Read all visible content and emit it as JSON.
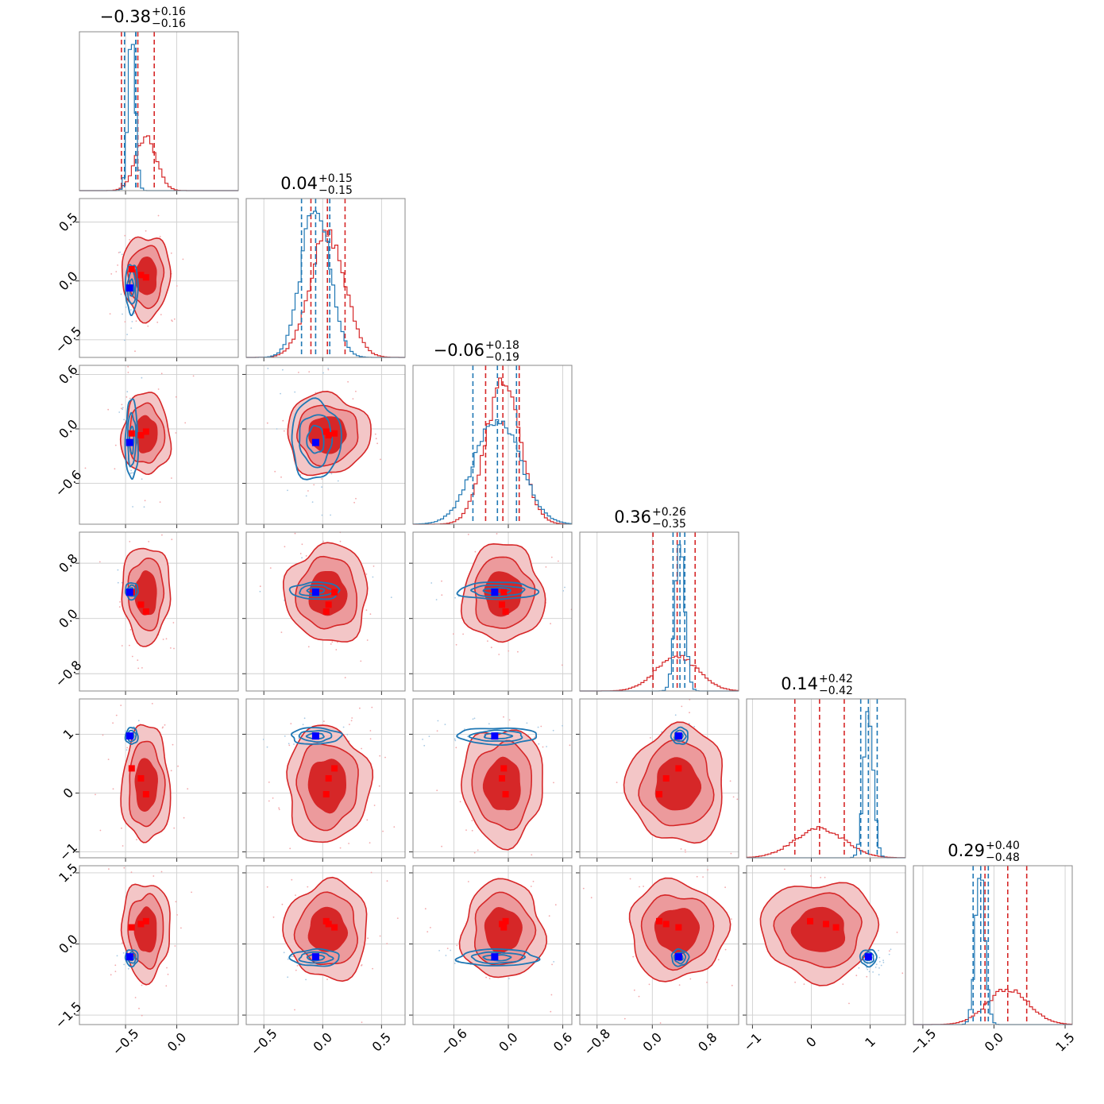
{
  "chart_data": {
    "type": "corner",
    "grid": true,
    "series": [
      {
        "name": "",
        "color": "#d62728"
      },
      {
        "name": "",
        "color": "#1f77b4"
      }
    ],
    "parameters": [
      {
        "range": [
          -0.95,
          0.6
        ],
        "ticks": [
          -0.5,
          0.0
        ],
        "tick_labels": [
          "−0.5",
          "0.0"
        ],
        "title": {
          "value": "−0.38",
          "plus": "+0.16",
          "minus": "−0.16"
        },
        "red": {
          "mean": -0.3,
          "sd": 0.1,
          "quantiles": [
            -0.54,
            -0.38,
            -0.22
          ],
          "truths": [
            -0.44,
            -0.35,
            -0.3
          ]
        },
        "blue": {
          "mean": -0.44,
          "sd": 0.035,
          "quantiles": [
            -0.51,
            -0.4,
            -0.4
          ],
          "truth": -0.46
        }
      },
      {
        "range": [
          -0.65,
          0.7
        ],
        "ticks": [
          -0.5,
          0.0,
          0.5
        ],
        "tick_labels": [
          "−0.5",
          "0.0",
          "0.5"
        ],
        "title": {
          "value": "0.04",
          "plus": "+0.15",
          "minus": "−0.15"
        },
        "red": {
          "mean": 0.04,
          "sd": 0.15,
          "quantiles": [
            -0.1,
            0.04,
            0.19
          ],
          "truths": [
            0.1,
            0.05,
            0.03
          ]
        },
        "blue": {
          "mean": -0.06,
          "sd": 0.12,
          "quantiles": [
            -0.18,
            -0.06,
            0.06
          ],
          "truth": -0.06
        }
      },
      {
        "range": [
          -1.05,
          0.7
        ],
        "ticks": [
          -0.6,
          0.0,
          0.6
        ],
        "tick_labels": [
          "−0.6",
          "0.0",
          "0.6"
        ],
        "title": {
          "value": "−0.06",
          "plus": "+0.18",
          "minus": "−0.19"
        },
        "red": {
          "mean": -0.06,
          "sd": 0.19,
          "quantiles": [
            -0.25,
            -0.06,
            0.12
          ],
          "truths": [
            -0.05,
            -0.07,
            -0.03
          ]
        },
        "blue": {
          "mean": -0.12,
          "sd": 0.25,
          "quantiles": [
            -0.39,
            -0.12,
            0.09
          ],
          "truth": -0.15
        }
      },
      {
        "range": [
          -1.05,
          1.25
        ],
        "ticks": [
          -0.8,
          0.0,
          0.8
        ],
        "tick_labels": [
          "−0.8",
          "0.0",
          "0.8"
        ],
        "title": {
          "value": "0.36",
          "plus": "+0.26",
          "minus": "−0.35"
        },
        "red": {
          "mean": 0.36,
          "sd": 0.3,
          "quantiles": [
            0.01,
            0.36,
            0.62
          ],
          "truths": [
            0.38,
            0.2,
            0.1
          ]
        },
        "blue": {
          "mean": 0.4,
          "sd": 0.07,
          "quantiles": [
            0.3,
            0.4,
            0.47
          ],
          "truth": 0.38
        }
      },
      {
        "range": [
          -1.1,
          1.6
        ],
        "ticks": [
          -1,
          0,
          1
        ],
        "tick_labels": [
          "−1",
          "0",
          "1"
        ],
        "title": {
          "value": "0.14",
          "plus": "+0.42",
          "minus": "−0.42"
        },
        "red": {
          "mean": 0.14,
          "sd": 0.42,
          "quantiles": [
            -0.28,
            0.14,
            0.56
          ],
          "truths": [
            0.42,
            0.25,
            -0.02
          ]
        },
        "blue": {
          "mean": 0.97,
          "sd": 0.08,
          "quantiles": [
            0.84,
            0.97,
            1.12
          ],
          "truth": 0.97
        }
      },
      {
        "range": [
          -1.7,
          1.65
        ],
        "ticks": [
          -1.5,
          0.0,
          1.5
        ],
        "tick_labels": [
          "−1.5",
          "0.0",
          "1.5"
        ],
        "title": {
          "value": "0.29",
          "plus": "+0.40",
          "minus": "−0.48"
        },
        "red": {
          "mean": 0.29,
          "sd": 0.44,
          "quantiles": [
            -0.19,
            0.29,
            0.69
          ],
          "truths": [
            0.35,
            0.42,
            0.48
          ]
        },
        "blue": {
          "mean": -0.29,
          "sd": 0.1,
          "quantiles": [
            -0.44,
            -0.28,
            -0.12
          ],
          "truth": -0.27
        }
      }
    ]
  }
}
